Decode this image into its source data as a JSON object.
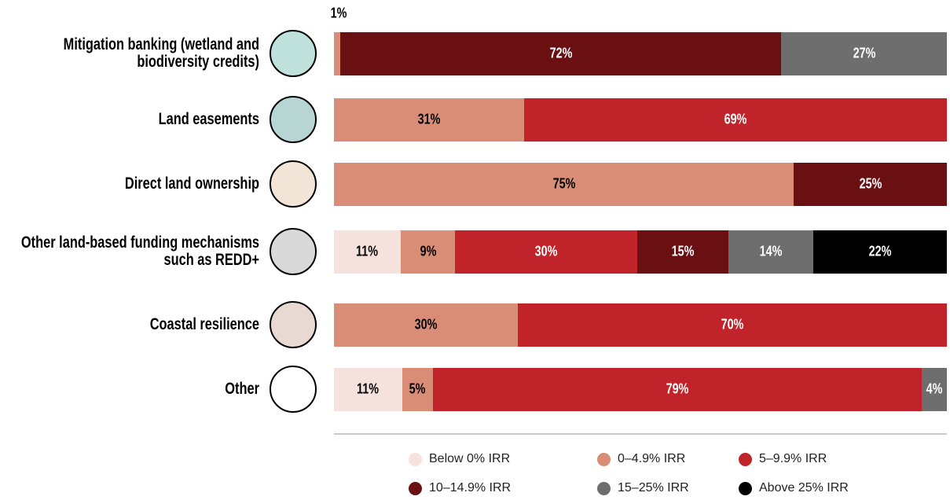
{
  "chart_data": {
    "type": "stacked-bar-100",
    "categories": [
      "Mitigation banking (wetland and biodiversity credits)",
      "Land easements",
      "Direct land ownership",
      "Other land-based funding mechanisms such as REDD+",
      "Coastal resilience",
      "Other"
    ],
    "series": [
      {
        "name": "Below 0% IRR",
        "color": "#f6e2dd",
        "values": [
          null,
          null,
          null,
          11,
          null,
          11
        ],
        "value_labels": [
          null,
          null,
          null,
          "11%",
          null,
          "11%"
        ]
      },
      {
        "name": "0–4.9% IRR",
        "color": "#d98d76",
        "values": [
          1,
          31,
          75,
          9,
          30,
          5
        ],
        "value_labels": [
          "1%",
          "31%",
          "75%",
          "9%",
          "30%",
          "5%"
        ]
      },
      {
        "name": "5–9.9% IRR",
        "color": "#c1232a",
        "values": [
          null,
          69,
          null,
          30,
          70,
          79
        ],
        "value_labels": [
          null,
          "69%",
          null,
          "30%",
          "70%",
          "79%"
        ]
      },
      {
        "name": "10–14.9% IRR",
        "color": "#6a1013",
        "values": [
          72,
          null,
          25,
          15,
          null,
          null
        ],
        "value_labels": [
          "72%",
          null,
          "25%",
          "15%",
          null,
          null
        ]
      },
      {
        "name": "15–25% IRR",
        "color": "#6e6e6e",
        "values": [
          27,
          null,
          null,
          14,
          null,
          4
        ],
        "value_labels": [
          "27%",
          null,
          null,
          "14%",
          null,
          "4%"
        ]
      },
      {
        "name": "Above 25% IRR",
        "color": "#000000",
        "values": [
          null,
          null,
          null,
          22,
          null,
          null
        ],
        "value_labels": [
          null,
          null,
          null,
          "22%",
          null,
          null
        ]
      }
    ]
  }
}
